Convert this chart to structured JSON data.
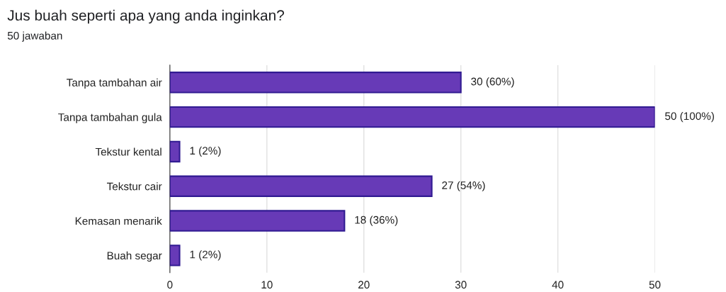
{
  "chart_data": {
    "type": "bar",
    "orientation": "horizontal",
    "title": "Jus buah seperti apa yang anda inginkan?",
    "subtitle": "50 jawaban",
    "categories": [
      "Tanpa tambahan air",
      "Tanpa tambahan gula",
      "Tekstur kental",
      "Tekstur cair",
      "Kemasan menarik",
      "Buah segar"
    ],
    "values": [
      30,
      50,
      1,
      27,
      18,
      1
    ],
    "value_labels": [
      "30 (60%)",
      "50 (100%)",
      "1 (2%)",
      "27 (54%)",
      "18 (36%)",
      "1 (2%)"
    ],
    "color": "#673ab7",
    "xlim": [
      0,
      50
    ],
    "xticks": [
      0,
      10,
      20,
      30,
      40,
      50
    ],
    "grid": "x",
    "legend": false
  }
}
